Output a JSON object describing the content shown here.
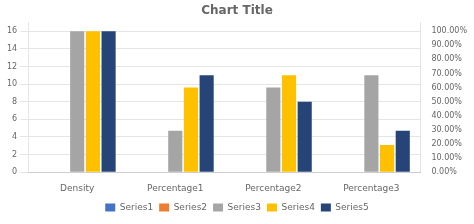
{
  "chart_data": {
    "type": "bar",
    "title": "Chart Title",
    "categories": [
      "Density",
      "Percentage1",
      "Percentage2",
      "Percentage3"
    ],
    "series": [
      {
        "name": "Series1",
        "color": "#4472c4",
        "values": [
          0,
          0,
          0,
          0
        ]
      },
      {
        "name": "Series2",
        "color": "#ed7d31",
        "values": [
          0,
          0,
          0,
          0
        ]
      },
      {
        "name": "Series3",
        "color": "#a5a5a5",
        "values": [
          16,
          4.7,
          9.6,
          11
        ]
      },
      {
        "name": "Series4",
        "color": "#ffc000",
        "values": [
          16,
          9.6,
          11,
          3.1
        ]
      },
      {
        "name": "Series5",
        "color": "#264478",
        "values": [
          16,
          11,
          8,
          4.7
        ]
      }
    ],
    "ylim": [
      0,
      17
    ],
    "yticks": [
      0,
      2,
      4,
      6,
      8,
      10,
      12,
      14,
      16
    ],
    "y2lim": [
      0,
      1.0625
    ],
    "y2ticks": [
      {
        "value": 0.0,
        "label": "0.00%"
      },
      {
        "value": 0.1,
        "label": "10.00%"
      },
      {
        "value": 0.2,
        "label": "20.00%"
      },
      {
        "value": 0.3,
        "label": "30.00%"
      },
      {
        "value": 0.4,
        "label": "40.00%"
      },
      {
        "value": 0.5,
        "label": "50.00%"
      },
      {
        "value": 0.6,
        "label": "60.00%"
      },
      {
        "value": 0.7,
        "label": "70.00%"
      },
      {
        "value": 0.8,
        "label": "80.00%"
      },
      {
        "value": 0.9,
        "label": "90.00%"
      },
      {
        "value": 1.0,
        "label": "100.00%"
      }
    ],
    "grid": true,
    "legend": "bottom"
  }
}
